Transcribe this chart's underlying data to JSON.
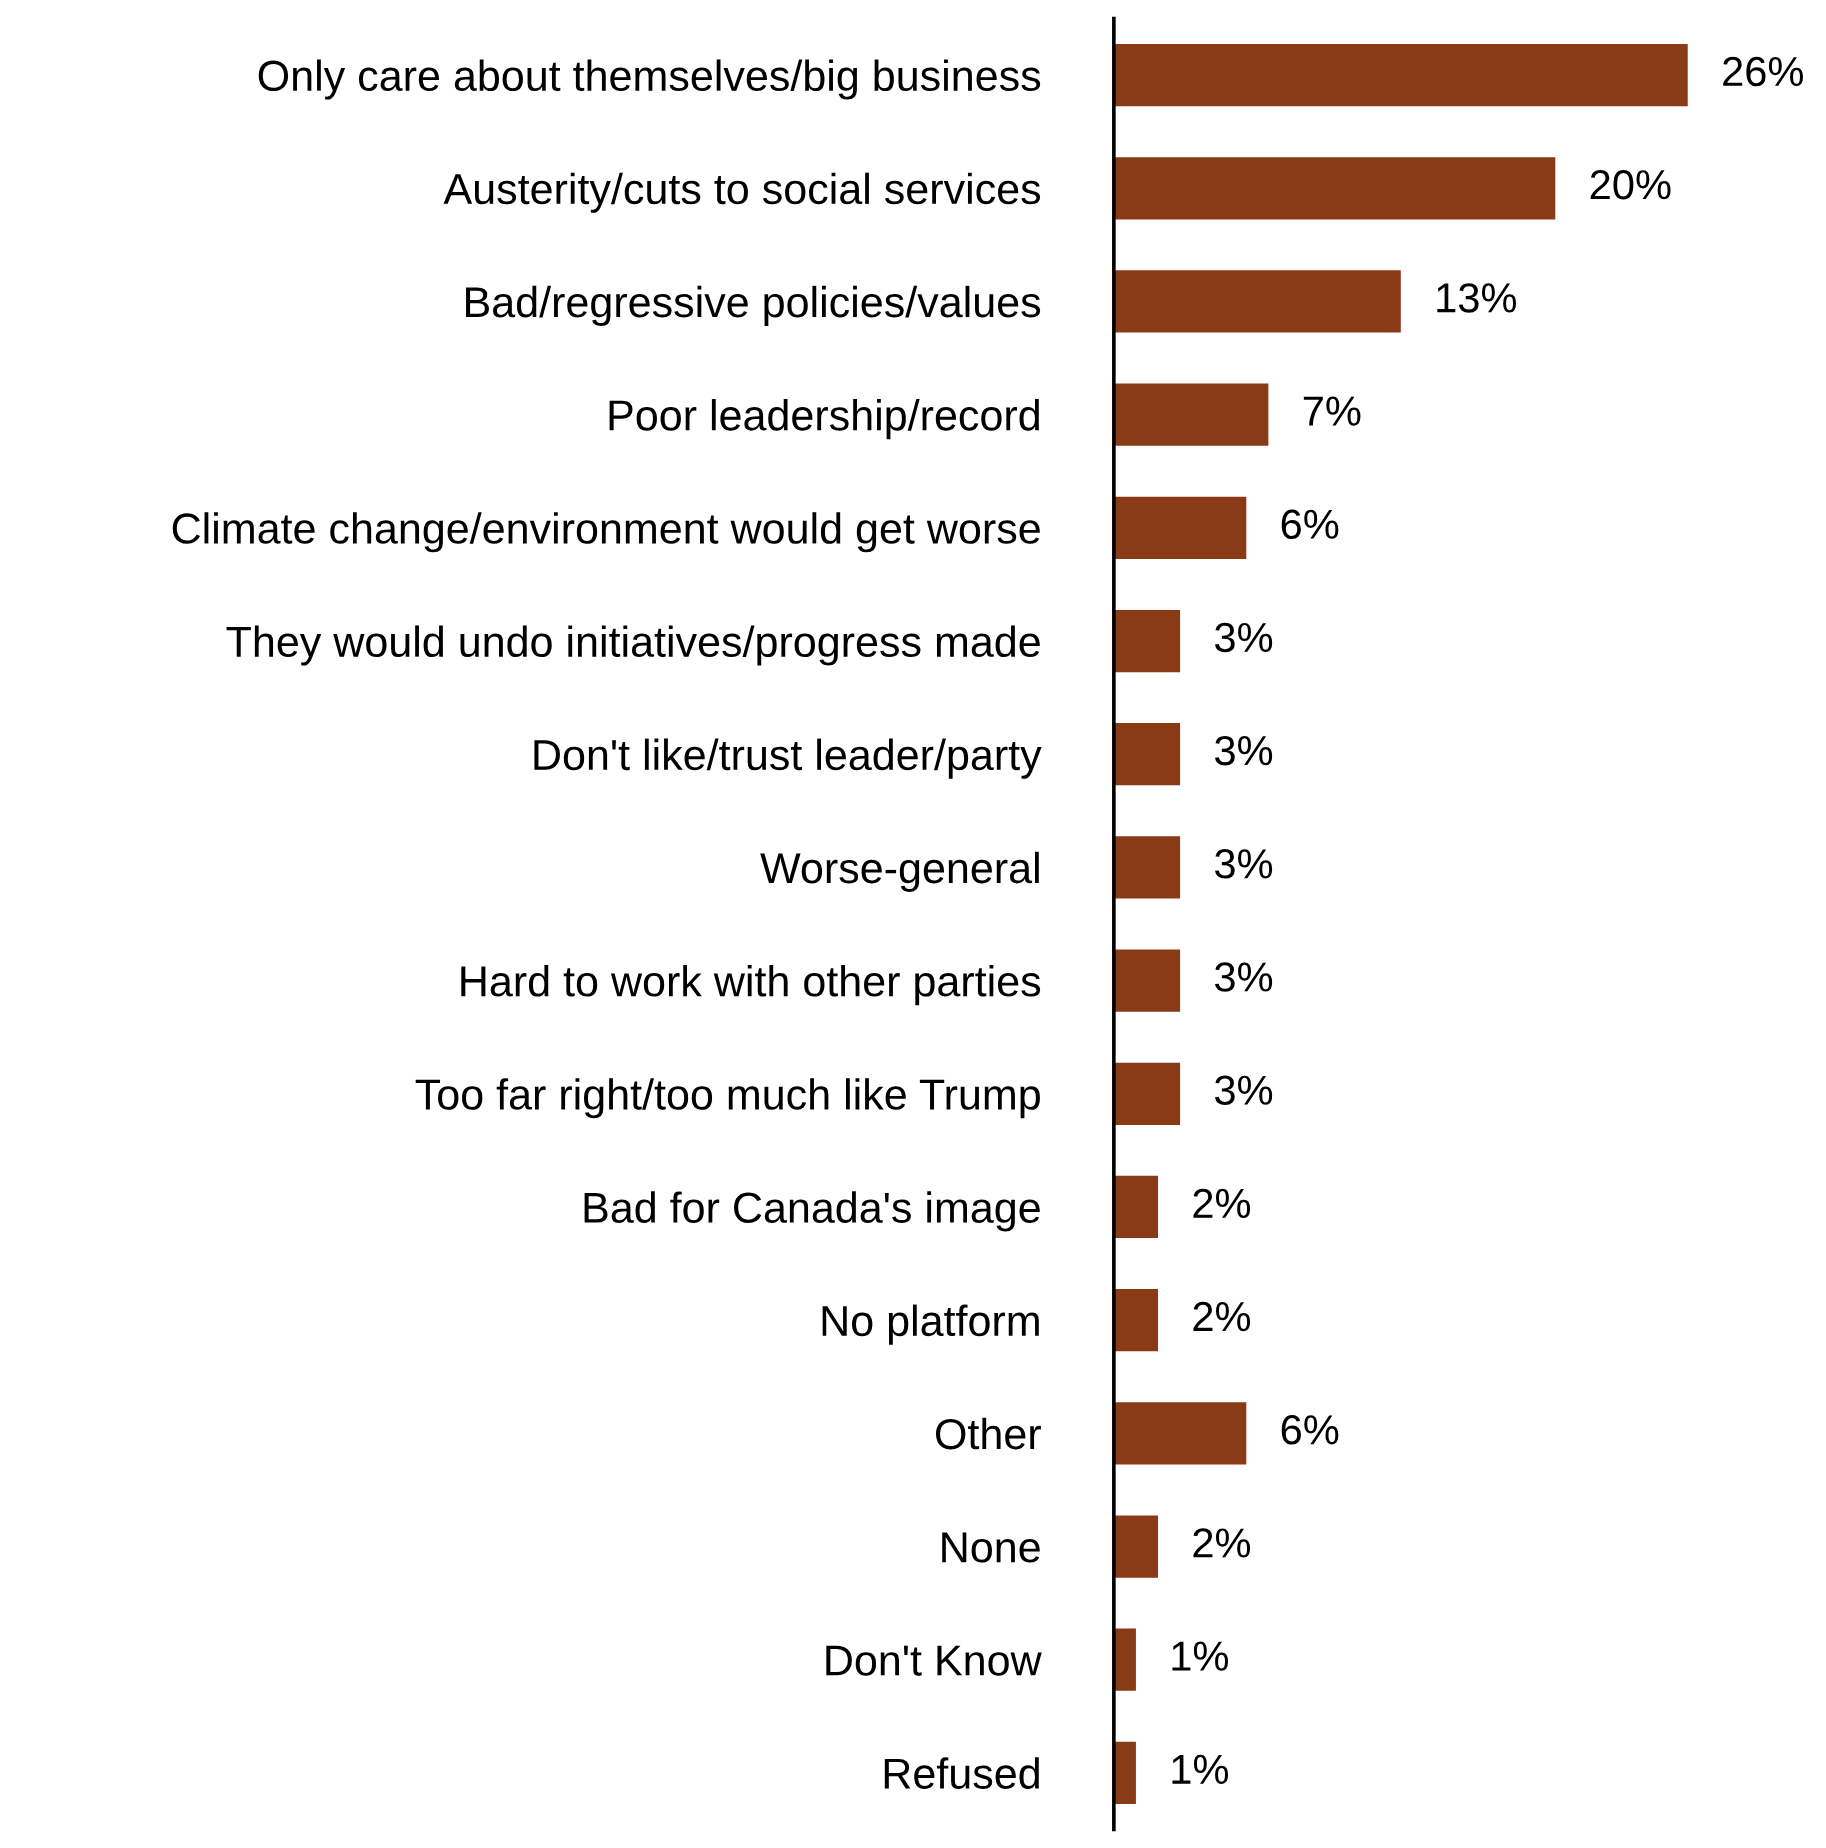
{
  "chart_data": {
    "type": "bar",
    "orientation": "horizontal",
    "categories": [
      "Only care about themselves/big business",
      "Austerity/cuts to social services",
      "Bad/regressive policies/values",
      "Poor leadership/record",
      "Climate change/environment would get worse",
      "They would undo initiatives/progress made",
      "Don't like/trust leader/party",
      "Worse-general",
      "Hard to work with other parties",
      "Too far right/too much like Trump",
      "Bad for Canada's image",
      "No platform",
      "Other",
      "None",
      "Don't Know",
      "Refused"
    ],
    "values": [
      26,
      20,
      13,
      7,
      6,
      3,
      3,
      3,
      3,
      3,
      2,
      2,
      6,
      2,
      1,
      1
    ],
    "value_labels": [
      "26%",
      "20%",
      "13%",
      "7%",
      "6%",
      "3%",
      "3%",
      "3%",
      "3%",
      "3%",
      "2%",
      "2%",
      "6%",
      "2%",
      "1%",
      "1%"
    ],
    "color": "#8b3a17",
    "grid": false,
    "legend": false
  }
}
